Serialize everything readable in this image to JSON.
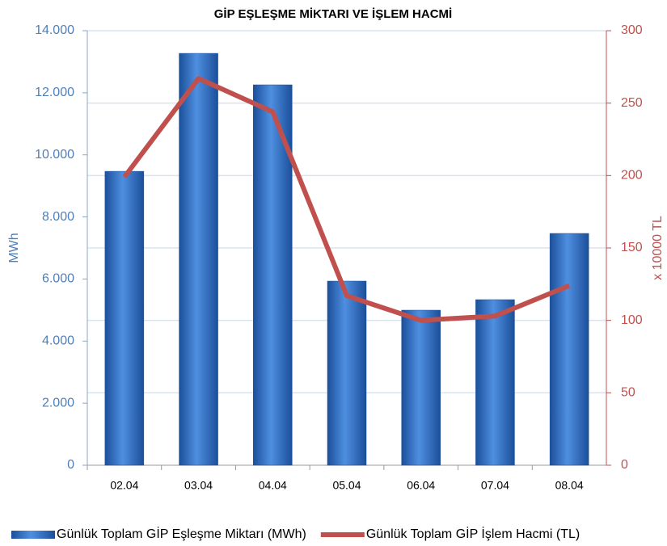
{
  "chart_data": {
    "type": "bar_line",
    "title": "GİP EŞLEŞME MİKTARI VE İŞLEM HACMİ",
    "ylabel": "MWh",
    "y2label": "x 10000 TL",
    "categories": [
      "02.04",
      "03.04",
      "04.04",
      "05.04",
      "06.04",
      "07.04",
      "08.04"
    ],
    "series": [
      {
        "name": "Günlük Toplam GİP Eşleşme Miktarı (MWh)",
        "color": "#2e6fc4",
        "type": "bar",
        "values": [
          9470,
          13270,
          12256,
          5933,
          4996,
          5335,
          7468
        ]
      },
      {
        "name": "Günlük Toplam GİP İşlem Hacmi (TL)",
        "color": "#c0504d",
        "type": "line",
        "axis": "y2",
        "values": [
          199,
          267,
          244,
          117,
          100,
          103,
          124
        ]
      }
    ],
    "ylim": [
      0,
      14000
    ],
    "yticks": [
      0,
      {
        "value": 2000,
        "label": "2.000"
      },
      {
        "value": 4000,
        "label": "4.000"
      },
      {
        "value": 6000,
        "label": "6.000"
      },
      {
        "value": 8000,
        "label": "8.000"
      },
      {
        "value": 10000,
        "label": "10.000"
      },
      {
        "value": 12000,
        "label": "12.000"
      },
      {
        "value": 14000,
        "label": "14.000"
      }
    ],
    "y2lim": [
      0,
      300
    ],
    "y2ticks": [
      0,
      50,
      100,
      150,
      200,
      250,
      300
    ],
    "grid": true,
    "legend": "bottom"
  }
}
